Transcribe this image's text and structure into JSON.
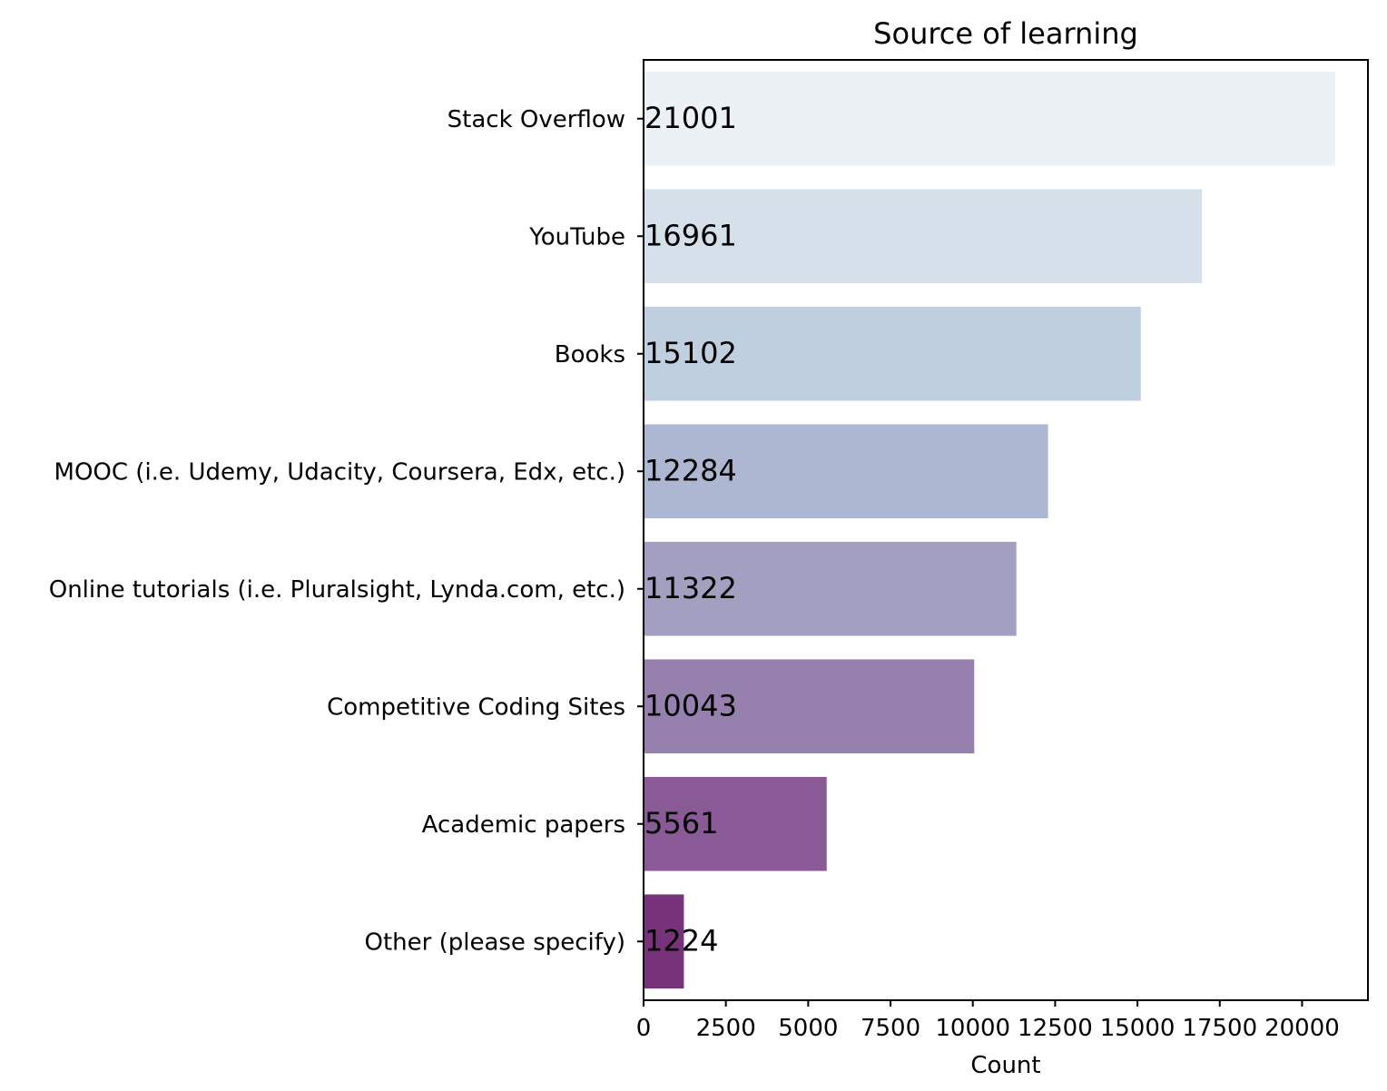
{
  "chart_data": {
    "type": "bar",
    "orientation": "horizontal",
    "title": "Source of learning",
    "xlabel": "Count",
    "ylabel": "",
    "xlim": [
      0,
      22000
    ],
    "xticks": [
      0,
      2500,
      5000,
      7500,
      10000,
      12500,
      15000,
      17500,
      20000
    ],
    "xtick_labels": [
      "0",
      "2500",
      "5000",
      "7500",
      "10000",
      "12500",
      "15000",
      "17500",
      "20000"
    ],
    "categories": [
      "Stack Overflow",
      "YouTube",
      "Books",
      "MOOC (i.e. Udemy, Udacity, Coursera, Edx, etc.)",
      "Online tutorials (i.e. Pluralsight, Lynda.com, etc.)",
      "Competitive Coding Sites",
      "Academic papers",
      "Other (please specify)"
    ],
    "values": [
      21001,
      16961,
      15102,
      12284,
      11322,
      10043,
      5561,
      1224
    ],
    "data_labels": [
      "21001",
      "16961",
      "15102",
      "12284",
      "11322",
      "10043",
      "5561",
      "1224"
    ],
    "colors": [
      "#ecf1f5",
      "#d5e0ea",
      "#bfcfdf",
      "#adb7d1",
      "#a29fc0",
      "#9680ad",
      "#8a5a97",
      "#773379"
    ],
    "grid": false,
    "legend": "none"
  }
}
